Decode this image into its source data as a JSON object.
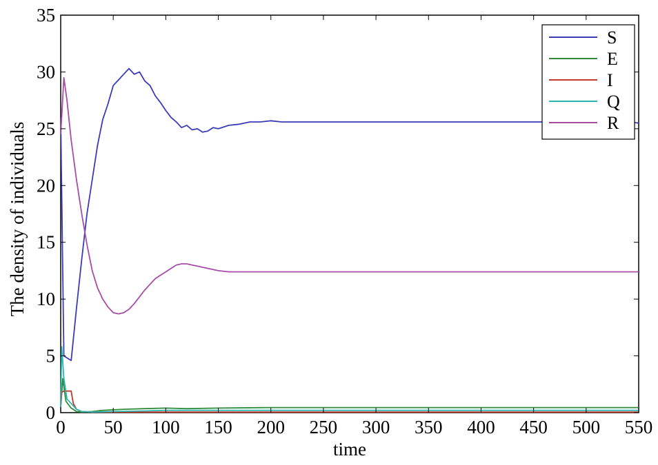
{
  "chart_data": {
    "type": "line",
    "title": "",
    "xlabel": "time",
    "ylabel": "The density of individuals",
    "xlim": [
      0,
      550
    ],
    "ylim": [
      0,
      35
    ],
    "xticks": [
      "0",
      "50",
      "100",
      "150",
      "200",
      "250",
      "300",
      "350",
      "400",
      "450",
      "500",
      "550"
    ],
    "yticks": [
      "0",
      "5",
      "10",
      "15",
      "20",
      "25",
      "30",
      "35"
    ],
    "grid": false,
    "legend_position": "top-right",
    "series": [
      {
        "name": "S",
        "color": "#3a3ab8",
        "x": [
          0,
          3,
          8,
          10,
          15,
          20,
          25,
          30,
          35,
          40,
          45,
          50,
          55,
          60,
          65,
          70,
          75,
          80,
          85,
          90,
          95,
          100,
          105,
          110,
          115,
          120,
          125,
          130,
          135,
          140,
          145,
          150,
          160,
          170,
          180,
          190,
          200,
          210,
          220,
          230,
          240,
          250,
          260,
          280,
          300,
          320,
          340,
          360,
          380,
          400,
          420,
          440,
          460,
          480,
          500,
          520,
          540,
          550
        ],
        "y": [
          26,
          5.0,
          4.7,
          4.6,
          9.2,
          13.5,
          17.5,
          20.5,
          23.5,
          25.8,
          27.2,
          28.8,
          29.3,
          29.8,
          30.3,
          29.8,
          30.0,
          29.2,
          28.8,
          27.9,
          27.3,
          26.6,
          26.0,
          25.6,
          25.1,
          25.3,
          24.9,
          25.0,
          24.7,
          24.8,
          25.1,
          25.0,
          25.3,
          25.4,
          25.6,
          25.6,
          25.7,
          25.6,
          25.6,
          25.6,
          25.6,
          25.6,
          25.6,
          25.6,
          25.6,
          25.6,
          25.6,
          25.6,
          25.6,
          25.6,
          25.6,
          25.6,
          25.6,
          25.6,
          25.6,
          25.6,
          25.6,
          25.5
        ]
      },
      {
        "name": "E",
        "color": "#2e8b3a",
        "x": [
          0,
          2,
          5,
          10,
          15,
          20,
          30,
          40,
          50,
          60,
          80,
          100,
          120,
          150,
          200,
          250,
          300,
          350,
          400,
          450,
          500,
          550
        ],
        "y": [
          0.5,
          3.0,
          1.0,
          0.4,
          0.1,
          0.05,
          0.1,
          0.2,
          0.25,
          0.3,
          0.35,
          0.4,
          0.35,
          0.4,
          0.45,
          0.45,
          0.45,
          0.45,
          0.45,
          0.45,
          0.45,
          0.45
        ]
      },
      {
        "name": "I",
        "color": "#c0392b",
        "x": [
          0,
          1,
          3,
          10,
          12,
          15,
          20,
          30,
          50,
          100,
          150,
          200,
          300,
          400,
          500,
          550
        ],
        "y": [
          0.5,
          1.8,
          1.9,
          1.9,
          0.8,
          0.3,
          0.1,
          0.05,
          0.05,
          0.05,
          0.05,
          0.05,
          0.05,
          0.05,
          0.05,
          0.05
        ]
      },
      {
        "name": "Q",
        "color": "#2ab5b0",
        "x": [
          0,
          1,
          3,
          6,
          10,
          15,
          20,
          30,
          50,
          80,
          100,
          150,
          200,
          300,
          400,
          500,
          550
        ],
        "y": [
          0.5,
          5.8,
          3.0,
          1.2,
          0.8,
          0.3,
          0.1,
          0.05,
          0.1,
          0.15,
          0.2,
          0.2,
          0.2,
          0.2,
          0.2,
          0.2,
          0.2
        ]
      },
      {
        "name": "R",
        "color": "#a64ca6",
        "x": [
          0,
          3,
          6,
          10,
          15,
          20,
          25,
          30,
          35,
          40,
          45,
          50,
          55,
          60,
          65,
          70,
          75,
          80,
          85,
          90,
          95,
          100,
          105,
          110,
          115,
          120,
          125,
          130,
          135,
          140,
          145,
          150,
          160,
          170,
          180,
          190,
          200,
          220,
          240,
          260,
          280,
          300,
          350,
          400,
          450,
          500,
          550
        ],
        "y": [
          24.5,
          29.5,
          27.5,
          24.0,
          20.5,
          17.5,
          14.8,
          12.5,
          11.0,
          10.0,
          9.3,
          8.8,
          8.7,
          8.8,
          9.1,
          9.6,
          10.2,
          10.8,
          11.3,
          11.8,
          12.1,
          12.4,
          12.7,
          13.0,
          13.1,
          13.1,
          13.0,
          12.9,
          12.8,
          12.7,
          12.6,
          12.5,
          12.4,
          12.4,
          12.4,
          12.4,
          12.4,
          12.4,
          12.4,
          12.4,
          12.4,
          12.4,
          12.4,
          12.4,
          12.4,
          12.4,
          12.4
        ]
      }
    ]
  }
}
